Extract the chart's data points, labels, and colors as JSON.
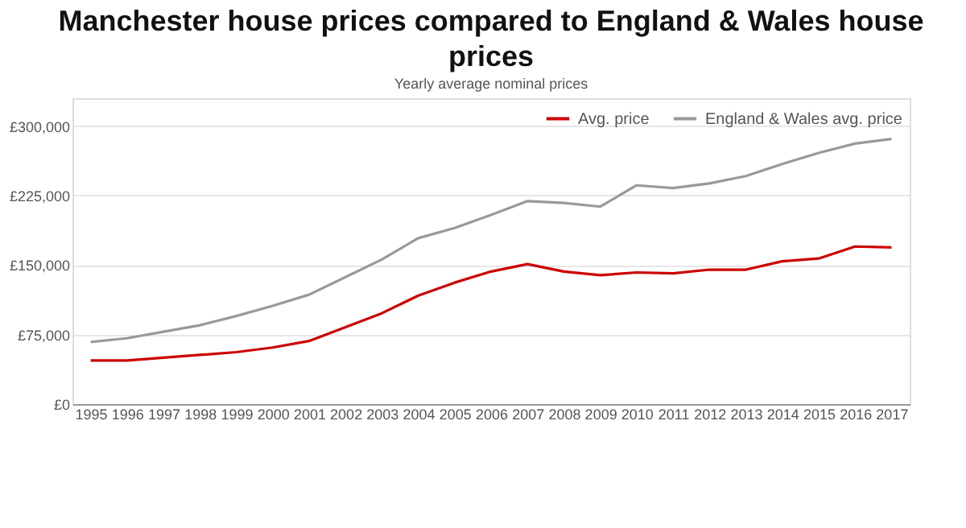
{
  "chart_data": {
    "type": "line",
    "title": "Manchester house prices compared to England & Wales house prices",
    "subtitle": "Yearly average nominal prices",
    "categories": [
      "1995",
      "1996",
      "1997",
      "1998",
      "1999",
      "2000",
      "2001",
      "2002",
      "2003",
      "2004",
      "2005",
      "2006",
      "2007",
      "2008",
      "2009",
      "2010",
      "2011",
      "2012",
      "2013",
      "2014",
      "2015",
      "2016",
      "2017"
    ],
    "series": [
      {
        "name": "Avg. price",
        "color": "#cc0000",
        "values": [
          47000,
          47000,
          50000,
          53000,
          56000,
          61000,
          68000,
          83000,
          98000,
          117000,
          131000,
          143000,
          151000,
          143000,
          139000,
          142000,
          141000,
          145000,
          145000,
          154000,
          157000,
          170000,
          169000
        ]
      },
      {
        "name": "England & Wales avg. price",
        "color": "#999999",
        "values": [
          67000,
          71000,
          78000,
          85000,
          95000,
          106000,
          118000,
          137000,
          156000,
          179000,
          190000,
          204000,
          219000,
          217000,
          213000,
          236000,
          233000,
          238000,
          246000,
          259000,
          271000,
          281000,
          286000
        ]
      }
    ],
    "ylim": [
      0,
      330000
    ],
    "yticks": [
      {
        "value": 0,
        "label": "£0"
      },
      {
        "value": 75000,
        "label": "£75,000"
      },
      {
        "value": 150000,
        "label": "£150,000"
      },
      {
        "value": 225000,
        "label": "£225,000"
      },
      {
        "value": 300000,
        "label": "£300,000"
      }
    ],
    "grid": "y",
    "legend": "top right",
    "line_style": "solid",
    "marker": "none"
  }
}
